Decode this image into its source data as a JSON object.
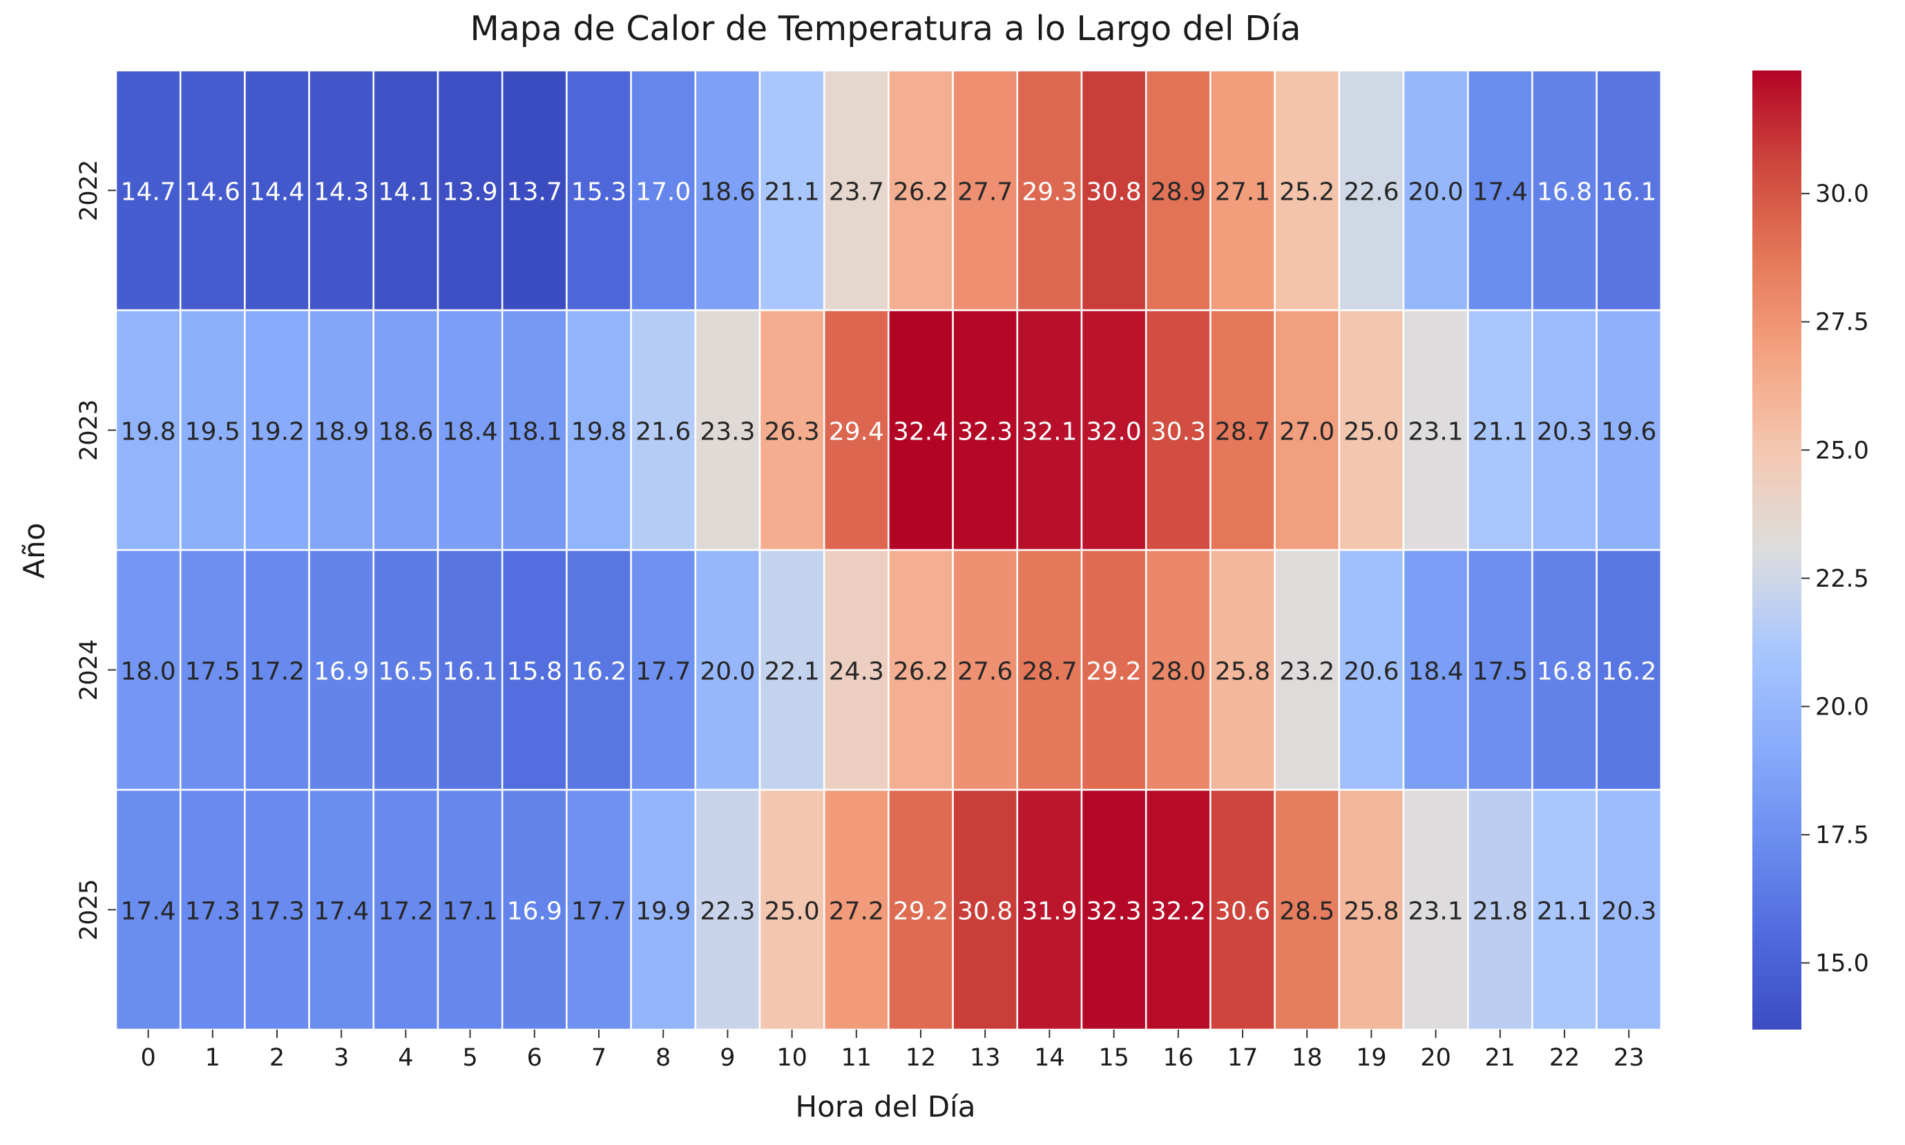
{
  "chart_data": {
    "type": "heatmap",
    "title": "Mapa de Calor de Temperatura a lo Largo del Día",
    "xlabel": "Hora del Día",
    "ylabel": "Año",
    "x_categories": [
      "0",
      "1",
      "2",
      "3",
      "4",
      "5",
      "6",
      "7",
      "8",
      "9",
      "10",
      "11",
      "12",
      "13",
      "14",
      "15",
      "16",
      "17",
      "18",
      "19",
      "20",
      "21",
      "22",
      "23"
    ],
    "y_categories": [
      "2022",
      "2023",
      "2024",
      "2025"
    ],
    "values": [
      [
        14.7,
        14.6,
        14.4,
        14.3,
        14.1,
        13.9,
        13.7,
        15.3,
        17.0,
        18.6,
        21.1,
        23.7,
        26.2,
        27.7,
        29.3,
        30.8,
        28.9,
        27.1,
        25.2,
        22.6,
        20.0,
        17.4,
        16.8,
        16.1
      ],
      [
        19.8,
        19.5,
        19.2,
        18.9,
        18.6,
        18.4,
        18.1,
        19.8,
        21.6,
        23.3,
        26.3,
        29.4,
        32.4,
        32.3,
        32.1,
        32.0,
        30.3,
        28.7,
        27.0,
        25.0,
        23.1,
        21.1,
        20.3,
        19.6
      ],
      [
        18.0,
        17.5,
        17.2,
        16.9,
        16.5,
        16.1,
        15.8,
        16.2,
        17.7,
        20.0,
        22.1,
        24.3,
        26.2,
        27.6,
        28.7,
        29.2,
        28.0,
        25.8,
        23.2,
        20.6,
        18.4,
        17.5,
        16.8,
        16.2
      ],
      [
        17.4,
        17.3,
        17.3,
        17.4,
        17.2,
        17.1,
        16.9,
        17.7,
        19.9,
        22.3,
        25.0,
        27.2,
        29.2,
        30.8,
        31.9,
        32.3,
        32.2,
        30.6,
        28.5,
        25.8,
        23.1,
        21.8,
        21.1,
        20.3
      ]
    ],
    "value_format": "0.1f",
    "colormap": "coolwarm",
    "color_range": [
      13.7,
      32.4
    ],
    "colorbar_ticks": [
      "15.0",
      "17.5",
      "20.0",
      "22.5",
      "25.0",
      "27.5",
      "30.0"
    ],
    "grid": "white cell borders",
    "legend": "colorbar right"
  }
}
